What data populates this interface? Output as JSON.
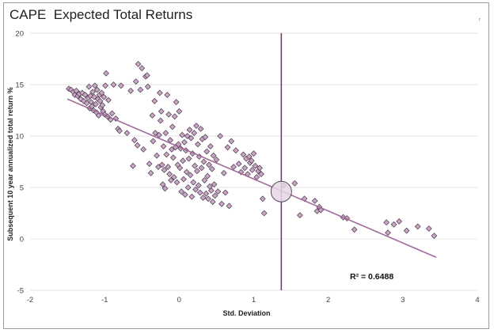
{
  "corner_mark": "↑",
  "chart_data": {
    "type": "scatter",
    "title": "CAPE  Expected Total Returns",
    "xlabel": "Std. Deviation",
    "ylabel": "Subsequent 10 year annualized total return %",
    "xlim": [
      -2,
      4
    ],
    "ylim": [
      -5,
      20
    ],
    "xticks": [
      "-2",
      "-1",
      "0",
      "1",
      "2",
      "3",
      "4"
    ],
    "yticks": [
      "-5",
      "0",
      "5",
      "10",
      "15",
      "20"
    ],
    "grid": "horizontal",
    "legend": "none",
    "colors": {
      "marker_fill": "#c9a6c6",
      "marker_stroke": "#4a3a4a",
      "trendline": "#a06a9a",
      "vertical_line": "#7a3a72",
      "circle_fill": "#e8d6e6",
      "gridline": "#e2e2e2"
    },
    "annotation": "R² = 0.6488",
    "vertical_line_x": 1.37,
    "highlight_point": [
      1.37,
      4.6
    ],
    "trendline": {
      "x": [
        -1.5,
        3.45
      ],
      "y": [
        13.6,
        -1.8
      ]
    },
    "points": [
      [
        -1.48,
        14.6
      ],
      [
        -1.45,
        14.5
      ],
      [
        -1.42,
        14.3
      ],
      [
        -1.4,
        14.0
      ],
      [
        -1.38,
        14.4
      ],
      [
        -1.36,
        13.9
      ],
      [
        -1.34,
        14.1
      ],
      [
        -1.32,
        13.6
      ],
      [
        -1.3,
        14.2
      ],
      [
        -1.28,
        13.4
      ],
      [
        -1.26,
        14.0
      ],
      [
        -1.24,
        13.2
      ],
      [
        -1.22,
        13.7
      ],
      [
        -1.21,
        14.8
      ],
      [
        -1.2,
        12.7
      ],
      [
        -1.19,
        13.9
      ],
      [
        -1.18,
        13.3
      ],
      [
        -1.17,
        12.9
      ],
      [
        -1.16,
        14.3
      ],
      [
        -1.15,
        12.5
      ],
      [
        -1.14,
        13.8
      ],
      [
        -1.13,
        14.9
      ],
      [
        -1.12,
        13.1
      ],
      [
        -1.11,
        12.3
      ],
      [
        -1.1,
        14.5
      ],
      [
        -1.09,
        13.6
      ],
      [
        -1.08,
        12.0
      ],
      [
        -1.07,
        14.0
      ],
      [
        -1.06,
        13.4
      ],
      [
        -1.05,
        12.8
      ],
      [
        -1.04,
        14.2
      ],
      [
        -1.03,
        13.0
      ],
      [
        -1.02,
        12.4
      ],
      [
        -1.01,
        13.8
      ],
      [
        -1.0,
        12.1
      ],
      [
        -0.99,
        14.9
      ],
      [
        -0.98,
        16.1
      ],
      [
        -0.96,
        11.9
      ],
      [
        -0.95,
        13.5
      ],
      [
        -0.92,
        11.6
      ],
      [
        -0.9,
        12.2
      ],
      [
        -0.88,
        15.0
      ],
      [
        -0.85,
        11.7
      ],
      [
        -0.82,
        10.7
      ],
      [
        -0.8,
        10.5
      ],
      [
        -0.78,
        14.9
      ],
      [
        -0.7,
        10.3
      ],
      [
        -0.65,
        14.4
      ],
      [
        -0.62,
        7.1
      ],
      [
        -0.6,
        9.6
      ],
      [
        -0.58,
        15.3
      ],
      [
        -0.56,
        9.1
      ],
      [
        -0.55,
        17.0
      ],
      [
        -0.52,
        14.5
      ],
      [
        -0.5,
        16.6
      ],
      [
        -0.48,
        8.7
      ],
      [
        -0.45,
        15.8
      ],
      [
        -0.43,
        15.9
      ],
      [
        -0.42,
        14.8
      ],
      [
        -0.4,
        7.3
      ],
      [
        -0.38,
        6.4
      ],
      [
        -0.36,
        12.0
      ],
      [
        -0.35,
        9.5
      ],
      [
        -0.33,
        13.4
      ],
      [
        -0.32,
        10.3
      ],
      [
        -0.3,
        8.1
      ],
      [
        -0.28,
        7.0
      ],
      [
        -0.27,
        10.1
      ],
      [
        -0.26,
        14.2
      ],
      [
        -0.25,
        11.5
      ],
      [
        -0.24,
        12.4
      ],
      [
        -0.23,
        7.2
      ],
      [
        -0.22,
        5.3
      ],
      [
        -0.21,
        9.0
      ],
      [
        -0.2,
        6.7
      ],
      [
        -0.19,
        4.9
      ],
      [
        -0.18,
        10.3
      ],
      [
        -0.17,
        8.2
      ],
      [
        -0.16,
        14.0
      ],
      [
        -0.15,
        7.0
      ],
      [
        -0.14,
        12.1
      ],
      [
        -0.13,
        6.3
      ],
      [
        -0.12,
        9.6
      ],
      [
        -0.11,
        5.7
      ],
      [
        -0.1,
        8.7
      ],
      [
        -0.09,
        10.9
      ],
      [
        -0.08,
        7.9
      ],
      [
        -0.07,
        6.0
      ],
      [
        -0.06,
        11.9
      ],
      [
        -0.05,
        8.9
      ],
      [
        -0.04,
        13.3
      ],
      [
        -0.03,
        5.5
      ],
      [
        -0.02,
        7.2
      ],
      [
        -0.01,
        9.2
      ],
      [
        0.0,
        12.4
      ],
      [
        0.01,
        6.9
      ],
      [
        0.02,
        8.8
      ],
      [
        0.03,
        4.6
      ],
      [
        0.04,
        10.1
      ],
      [
        0.05,
        7.6
      ],
      [
        0.06,
        5.8
      ],
      [
        0.07,
        9.4
      ],
      [
        0.08,
        4.3
      ],
      [
        0.09,
        8.6
      ],
      [
        0.1,
        6.5
      ],
      [
        0.11,
        10.0
      ],
      [
        0.12,
        5.0
      ],
      [
        0.13,
        7.8
      ],
      [
        0.14,
        10.6
      ],
      [
        0.15,
        6.2
      ],
      [
        0.16,
        9.8
      ],
      [
        0.17,
        4.1
      ],
      [
        0.18,
        8.3
      ],
      [
        0.19,
        5.5
      ],
      [
        0.2,
        10.3
      ],
      [
        0.21,
        7.1
      ],
      [
        0.22,
        4.8
      ],
      [
        0.23,
        11.0
      ],
      [
        0.24,
        6.6
      ],
      [
        0.25,
        9.2
      ],
      [
        0.26,
        5.2
      ],
      [
        0.27,
        8.0
      ],
      [
        0.28,
        4.5
      ],
      [
        0.29,
        10.7
      ],
      [
        0.3,
        6.9
      ],
      [
        0.31,
        9.7
      ],
      [
        0.32,
        4.0
      ],
      [
        0.33,
        7.5
      ],
      [
        0.34,
        5.7
      ],
      [
        0.35,
        9.9
      ],
      [
        0.36,
        4.4
      ],
      [
        0.37,
        8.5
      ],
      [
        0.38,
        6.1
      ],
      [
        0.39,
        3.9
      ],
      [
        0.4,
        7.2
      ],
      [
        0.41,
        5.1
      ],
      [
        0.42,
        9.0
      ],
      [
        0.43,
        4.7
      ],
      [
        0.44,
        6.8
      ],
      [
        0.45,
        3.6
      ],
      [
        0.46,
        8.1
      ],
      [
        0.47,
        5.3
      ],
      [
        0.48,
        4.2
      ],
      [
        0.5,
        7.7
      ],
      [
        0.52,
        4.6
      ],
      [
        0.55,
        10.0
      ],
      [
        0.57,
        3.4
      ],
      [
        0.6,
        6.4
      ],
      [
        0.62,
        4.5
      ],
      [
        0.65,
        8.9
      ],
      [
        0.67,
        3.2
      ],
      [
        0.7,
        9.5
      ],
      [
        0.73,
        7.0
      ],
      [
        0.76,
        8.6
      ],
      [
        0.8,
        7.3
      ],
      [
        0.83,
        6.5
      ],
      [
        0.86,
        8.2
      ],
      [
        0.88,
        6.9
      ],
      [
        0.9,
        7.8
      ],
      [
        0.92,
        6.3
      ],
      [
        0.94,
        8.0
      ],
      [
        0.95,
        7.4
      ],
      [
        0.97,
        7.6
      ],
      [
        0.98,
        6.7
      ],
      [
        1.0,
        8.3
      ],
      [
        1.02,
        7.1
      ],
      [
        1.04,
        6.0
      ],
      [
        1.06,
        6.6
      ],
      [
        1.08,
        6.9
      ],
      [
        1.1,
        6.3
      ],
      [
        1.12,
        3.9
      ],
      [
        1.14,
        2.5
      ],
      [
        1.4,
        5.2
      ],
      [
        1.55,
        5.4
      ],
      [
        1.62,
        2.3
      ],
      [
        1.68,
        3.9
      ],
      [
        1.82,
        3.7
      ],
      [
        1.85,
        2.7
      ],
      [
        1.88,
        3.1
      ],
      [
        1.9,
        2.8
      ],
      [
        2.2,
        2.1
      ],
      [
        2.25,
        2.0
      ],
      [
        2.35,
        0.9
      ],
      [
        2.78,
        1.6
      ],
      [
        2.8,
        0.6
      ],
      [
        2.88,
        1.4
      ],
      [
        2.95,
        1.7
      ],
      [
        3.05,
        0.8
      ],
      [
        3.2,
        1.2
      ],
      [
        3.35,
        1.0
      ],
      [
        3.42,
        0.3
      ]
    ]
  }
}
